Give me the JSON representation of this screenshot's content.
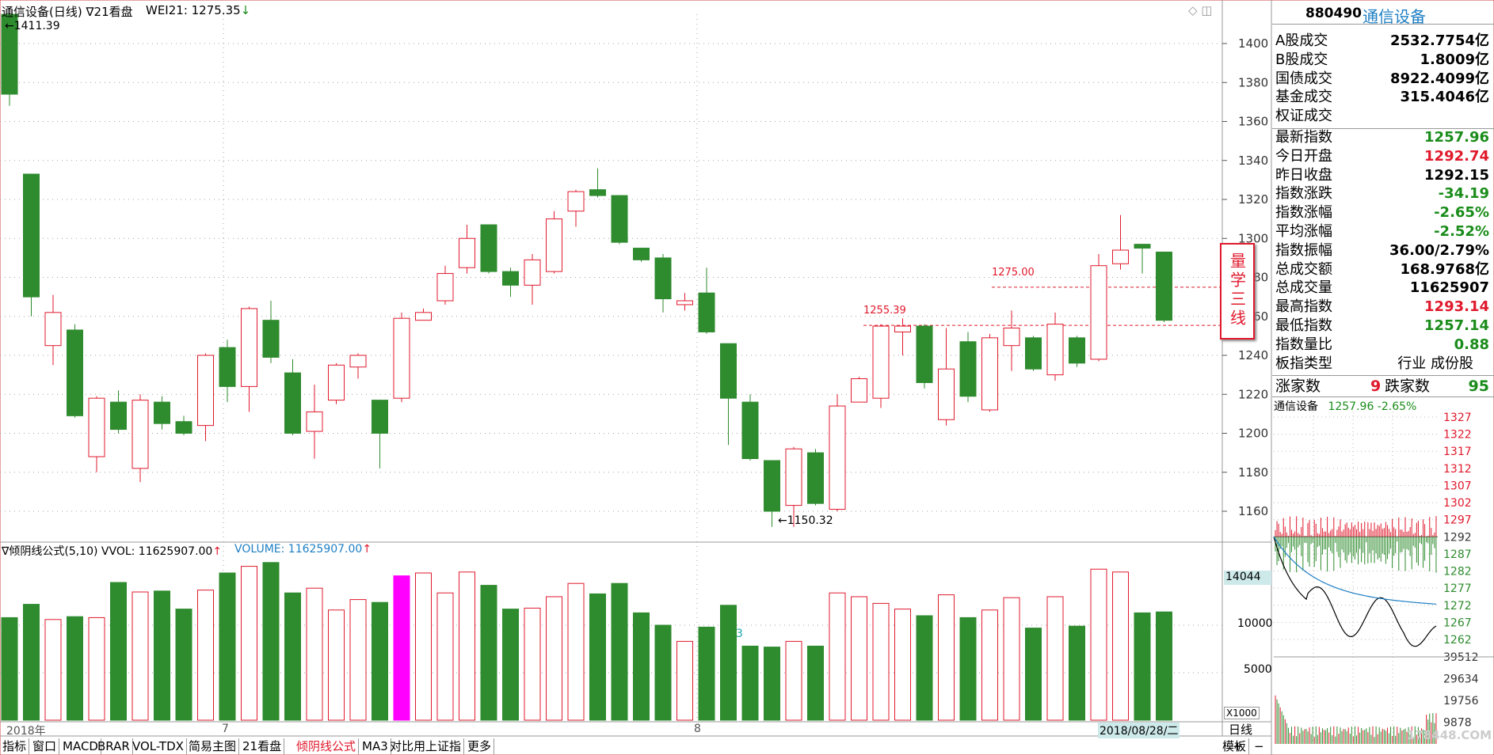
{
  "header": {
    "title": "通信设备(日线)",
    "period_menu": "∇21看盘",
    "indicator": "WEI21: 1275.35",
    "arrow_down": "↓"
  },
  "main_chart": {
    "high_label": "←1411.39",
    "low_label": "←1150.32",
    "line1_label": "1275.00",
    "line2_label": "1255.39",
    "y_ticks": [
      "1400",
      "1380",
      "1360",
      "1340",
      "1320",
      "1300",
      "1280",
      "1260",
      "1240",
      "1220",
      "1200",
      "1180",
      "1160"
    ],
    "watermark_text": "量学三线"
  },
  "volume_panel": {
    "title": "∇倾阴线公式(5,10) VVOL: 11625907.00",
    "volume_label": "VOLUME: 11625907.00",
    "up_arrow": "↑",
    "y_ticks": [
      "10000",
      "5000"
    ],
    "highlight_value": "14044",
    "unit": "X1000",
    "marker": "3"
  },
  "x_axis": {
    "labels": [
      "2018年",
      "7",
      "8"
    ],
    "date_badge": "2018/08/28/二"
  },
  "tabs": [
    "指标",
    "窗口",
    "MACD",
    "BRAR",
    "VOL-TDX",
    "简易主图",
    "21看盘",
    "倾阴线公式",
    "MA3",
    "对比用上证指",
    "更多"
  ],
  "active_tab": "倾阴线公式",
  "bottom_right": {
    "period": "日线",
    "mode": "模板",
    "plus": "+",
    "minus": "−"
  },
  "sidebar": {
    "code": "880490",
    "name": "通信设备",
    "rows": [
      {
        "label": "A股成交",
        "value": "2532.7754亿",
        "color": "#000"
      },
      {
        "label": "B股成交",
        "value": "1.8009亿",
        "color": "#000"
      },
      {
        "label": "国债成交",
        "value": "8922.4099亿",
        "color": "#000"
      },
      {
        "label": "基金成交",
        "value": "315.4046亿",
        "color": "#000"
      },
      {
        "label": "权证成交",
        "value": "",
        "color": "#000"
      },
      {
        "label": "最新指数",
        "value": "1257.96",
        "color": "#1a8c1a"
      },
      {
        "label": "今日开盘",
        "value": "1292.74",
        "color": "#e0192c"
      },
      {
        "label": "昨日收盘",
        "value": "1292.15",
        "color": "#000"
      },
      {
        "label": "指数涨跌",
        "value": "-34.19",
        "color": "#1a8c1a"
      },
      {
        "label": "指数涨幅",
        "value": "-2.65%",
        "color": "#1a8c1a"
      },
      {
        "label": "平均涨幅",
        "value": "-2.52%",
        "color": "#1a8c1a"
      },
      {
        "label": "指数振幅",
        "value": "36.00/2.79%",
        "color": "#000"
      },
      {
        "label": "总成交额",
        "value": "168.9768亿",
        "color": "#000"
      },
      {
        "label": "总成交量",
        "value": "11625907",
        "color": "#000"
      },
      {
        "label": "最高指数",
        "value": "1293.14",
        "color": "#e0192c"
      },
      {
        "label": "最低指数",
        "value": "1257.14",
        "color": "#1a8c1a"
      },
      {
        "label": "指数量比",
        "value": "0.88",
        "color": "#1a8c1a"
      },
      {
        "label": "板指类型",
        "value": "行业 成份股",
        "color": "#000"
      }
    ],
    "up_label": "涨家数",
    "up_count": "9",
    "down_label": "跌家数",
    "down_count": "95",
    "mini_title": "通信设备",
    "mini_value": "1257.96 -2.65%",
    "mini_ticks": [
      "1327",
      "1322",
      "1317",
      "1312",
      "1307",
      "1302",
      "1297",
      "1292",
      "1287",
      "1282",
      "1277",
      "1272",
      "1267",
      "1262"
    ],
    "mini_vol_ticks": [
      "39512",
      "29634",
      "19756",
      "9878"
    ],
    "watermark": "178448.COM"
  },
  "colors": {
    "up": "#e0192c",
    "down": "#2e8b2e",
    "highlight": "#ff00ff",
    "blue": "#1e7fc4",
    "grid": "#a0a0a0"
  },
  "chart_data": {
    "type": "candlestick",
    "ylim": [
      1140,
      1415
    ],
    "candles": [
      {
        "o": 1415,
        "c": 1374,
        "h": 1415,
        "l": 1368,
        "up": false
      },
      {
        "o": 1333,
        "c": 1270,
        "h": 1333,
        "l": 1260,
        "up": false
      },
      {
        "o": 1245,
        "c": 1262,
        "h": 1271,
        "l": 1235,
        "up": true
      },
      {
        "o": 1253,
        "c": 1209,
        "h": 1256,
        "l": 1208,
        "up": false
      },
      {
        "o": 1188,
        "c": 1218,
        "h": 1219,
        "l": 1180,
        "up": true
      },
      {
        "o": 1216,
        "c": 1202,
        "h": 1222,
        "l": 1200,
        "up": false
      },
      {
        "o": 1182,
        "c": 1217,
        "h": 1220,
        "l": 1175,
        "up": true
      },
      {
        "o": 1216,
        "c": 1205,
        "h": 1219,
        "l": 1202,
        "up": false
      },
      {
        "o": 1206,
        "c": 1200,
        "h": 1209,
        "l": 1199,
        "up": false
      },
      {
        "o": 1204,
        "c": 1240,
        "h": 1241,
        "l": 1196,
        "up": true
      },
      {
        "o": 1244,
        "c": 1224,
        "h": 1248,
        "l": 1216,
        "up": false
      },
      {
        "o": 1224,
        "c": 1264,
        "h": 1265,
        "l": 1211,
        "up": true
      },
      {
        "o": 1258,
        "c": 1239,
        "h": 1268,
        "l": 1236,
        "up": false
      },
      {
        "o": 1231,
        "c": 1200,
        "h": 1238,
        "l": 1199,
        "up": false
      },
      {
        "o": 1201,
        "c": 1211,
        "h": 1225,
        "l": 1187,
        "up": true
      },
      {
        "o": 1217,
        "c": 1235,
        "h": 1236,
        "l": 1215,
        "up": true
      },
      {
        "o": 1234,
        "c": 1240,
        "h": 1241,
        "l": 1228,
        "up": true
      },
      {
        "o": 1217,
        "c": 1200,
        "h": 1217,
        "l": 1182,
        "up": false
      },
      {
        "o": 1218,
        "c": 1259,
        "h": 1262,
        "l": 1216,
        "up": true
      },
      {
        "o": 1258,
        "c": 1262,
        "h": 1264,
        "l": 1258,
        "up": true
      },
      {
        "o": 1268,
        "c": 1282,
        "h": 1286,
        "l": 1266,
        "up": true
      },
      {
        "o": 1285,
        "c": 1300,
        "h": 1307,
        "l": 1282,
        "up": true
      },
      {
        "o": 1307,
        "c": 1283,
        "h": 1307,
        "l": 1282,
        "up": false
      },
      {
        "o": 1283,
        "c": 1276,
        "h": 1285,
        "l": 1270,
        "up": false
      },
      {
        "o": 1276,
        "c": 1289,
        "h": 1292,
        "l": 1266,
        "up": true
      },
      {
        "o": 1283,
        "c": 1310,
        "h": 1314,
        "l": 1282,
        "up": true
      },
      {
        "o": 1314,
        "c": 1324,
        "h": 1325,
        "l": 1306,
        "up": true
      },
      {
        "o": 1325,
        "c": 1322,
        "h": 1336,
        "l": 1321,
        "up": false
      },
      {
        "o": 1322,
        "c": 1298,
        "h": 1322,
        "l": 1297,
        "up": false
      },
      {
        "o": 1295,
        "c": 1289,
        "h": 1295,
        "l": 1288,
        "up": false
      },
      {
        "o": 1290,
        "c": 1269,
        "h": 1292,
        "l": 1262,
        "up": false
      },
      {
        "o": 1266,
        "c": 1268,
        "h": 1272,
        "l": 1263,
        "up": true
      },
      {
        "o": 1272,
        "c": 1252,
        "h": 1285,
        "l": 1251,
        "up": false
      },
      {
        "o": 1246,
        "c": 1218,
        "h": 1246,
        "l": 1194,
        "up": false
      },
      {
        "o": 1216,
        "c": 1187,
        "h": 1220,
        "l": 1186,
        "up": false
      },
      {
        "o": 1186,
        "c": 1160,
        "h": 1186,
        "l": 1152,
        "up": false
      },
      {
        "o": 1163,
        "c": 1192,
        "h": 1193,
        "l": 1152,
        "up": true
      },
      {
        "o": 1190,
        "c": 1164,
        "h": 1192,
        "l": 1163,
        "up": false
      },
      {
        "o": 1161,
        "c": 1214,
        "h": 1220,
        "l": 1160,
        "up": true
      },
      {
        "o": 1216,
        "c": 1228,
        "h": 1229,
        "l": 1216,
        "up": true
      },
      {
        "o": 1218,
        "c": 1255,
        "h": 1256,
        "l": 1213,
        "up": true
      },
      {
        "o": 1252,
        "c": 1255,
        "h": 1259,
        "l": 1240,
        "up": true
      },
      {
        "o": 1255,
        "c": 1226,
        "h": 1256,
        "l": 1223,
        "up": false
      },
      {
        "o": 1207,
        "c": 1233,
        "h": 1254,
        "l": 1204,
        "up": true
      },
      {
        "o": 1247,
        "c": 1219,
        "h": 1252,
        "l": 1216,
        "up": false
      },
      {
        "o": 1212,
        "c": 1249,
        "h": 1251,
        "l": 1211,
        "up": true
      },
      {
        "o": 1245,
        "c": 1254,
        "h": 1263,
        "l": 1232,
        "up": true
      },
      {
        "o": 1249,
        "c": 1233,
        "h": 1250,
        "l": 1232,
        "up": false
      },
      {
        "o": 1230,
        "c": 1256,
        "h": 1262,
        "l": 1227,
        "up": true
      },
      {
        "o": 1249,
        "c": 1236,
        "h": 1250,
        "l": 1234,
        "up": false
      },
      {
        "o": 1238,
        "c": 1286,
        "h": 1292,
        "l": 1237,
        "up": true
      },
      {
        "o": 1287,
        "c": 1294,
        "h": 1312,
        "l": 1284,
        "up": true
      },
      {
        "o": 1297,
        "c": 1295,
        "h": 1297,
        "l": 1282,
        "up": false
      },
      {
        "o": 1293,
        "c": 1258,
        "h": 1293,
        "l": 1257,
        "up": false
      }
    ],
    "volumes": [
      10800,
      12200,
      10600,
      10900,
      10800,
      14500,
      13500,
      13600,
      11700,
      13700,
      15500,
      16200,
      16600,
      13400,
      13900,
      11600,
      12700,
      12400,
      15200,
      15500,
      13400,
      15600,
      14200,
      11700,
      11800,
      13000,
      14400,
      13300,
      14400,
      11300,
      10000,
      8300,
      9800,
      12100,
      7800,
      7700,
      8300,
      7800,
      13400,
      13000,
      12300,
      11700,
      11000,
      13200,
      10800,
      11600,
      12900,
      9700,
      13000,
      9900,
      15900,
      15600,
      11300,
      11400
    ],
    "volume_highlight_index": 18
  }
}
